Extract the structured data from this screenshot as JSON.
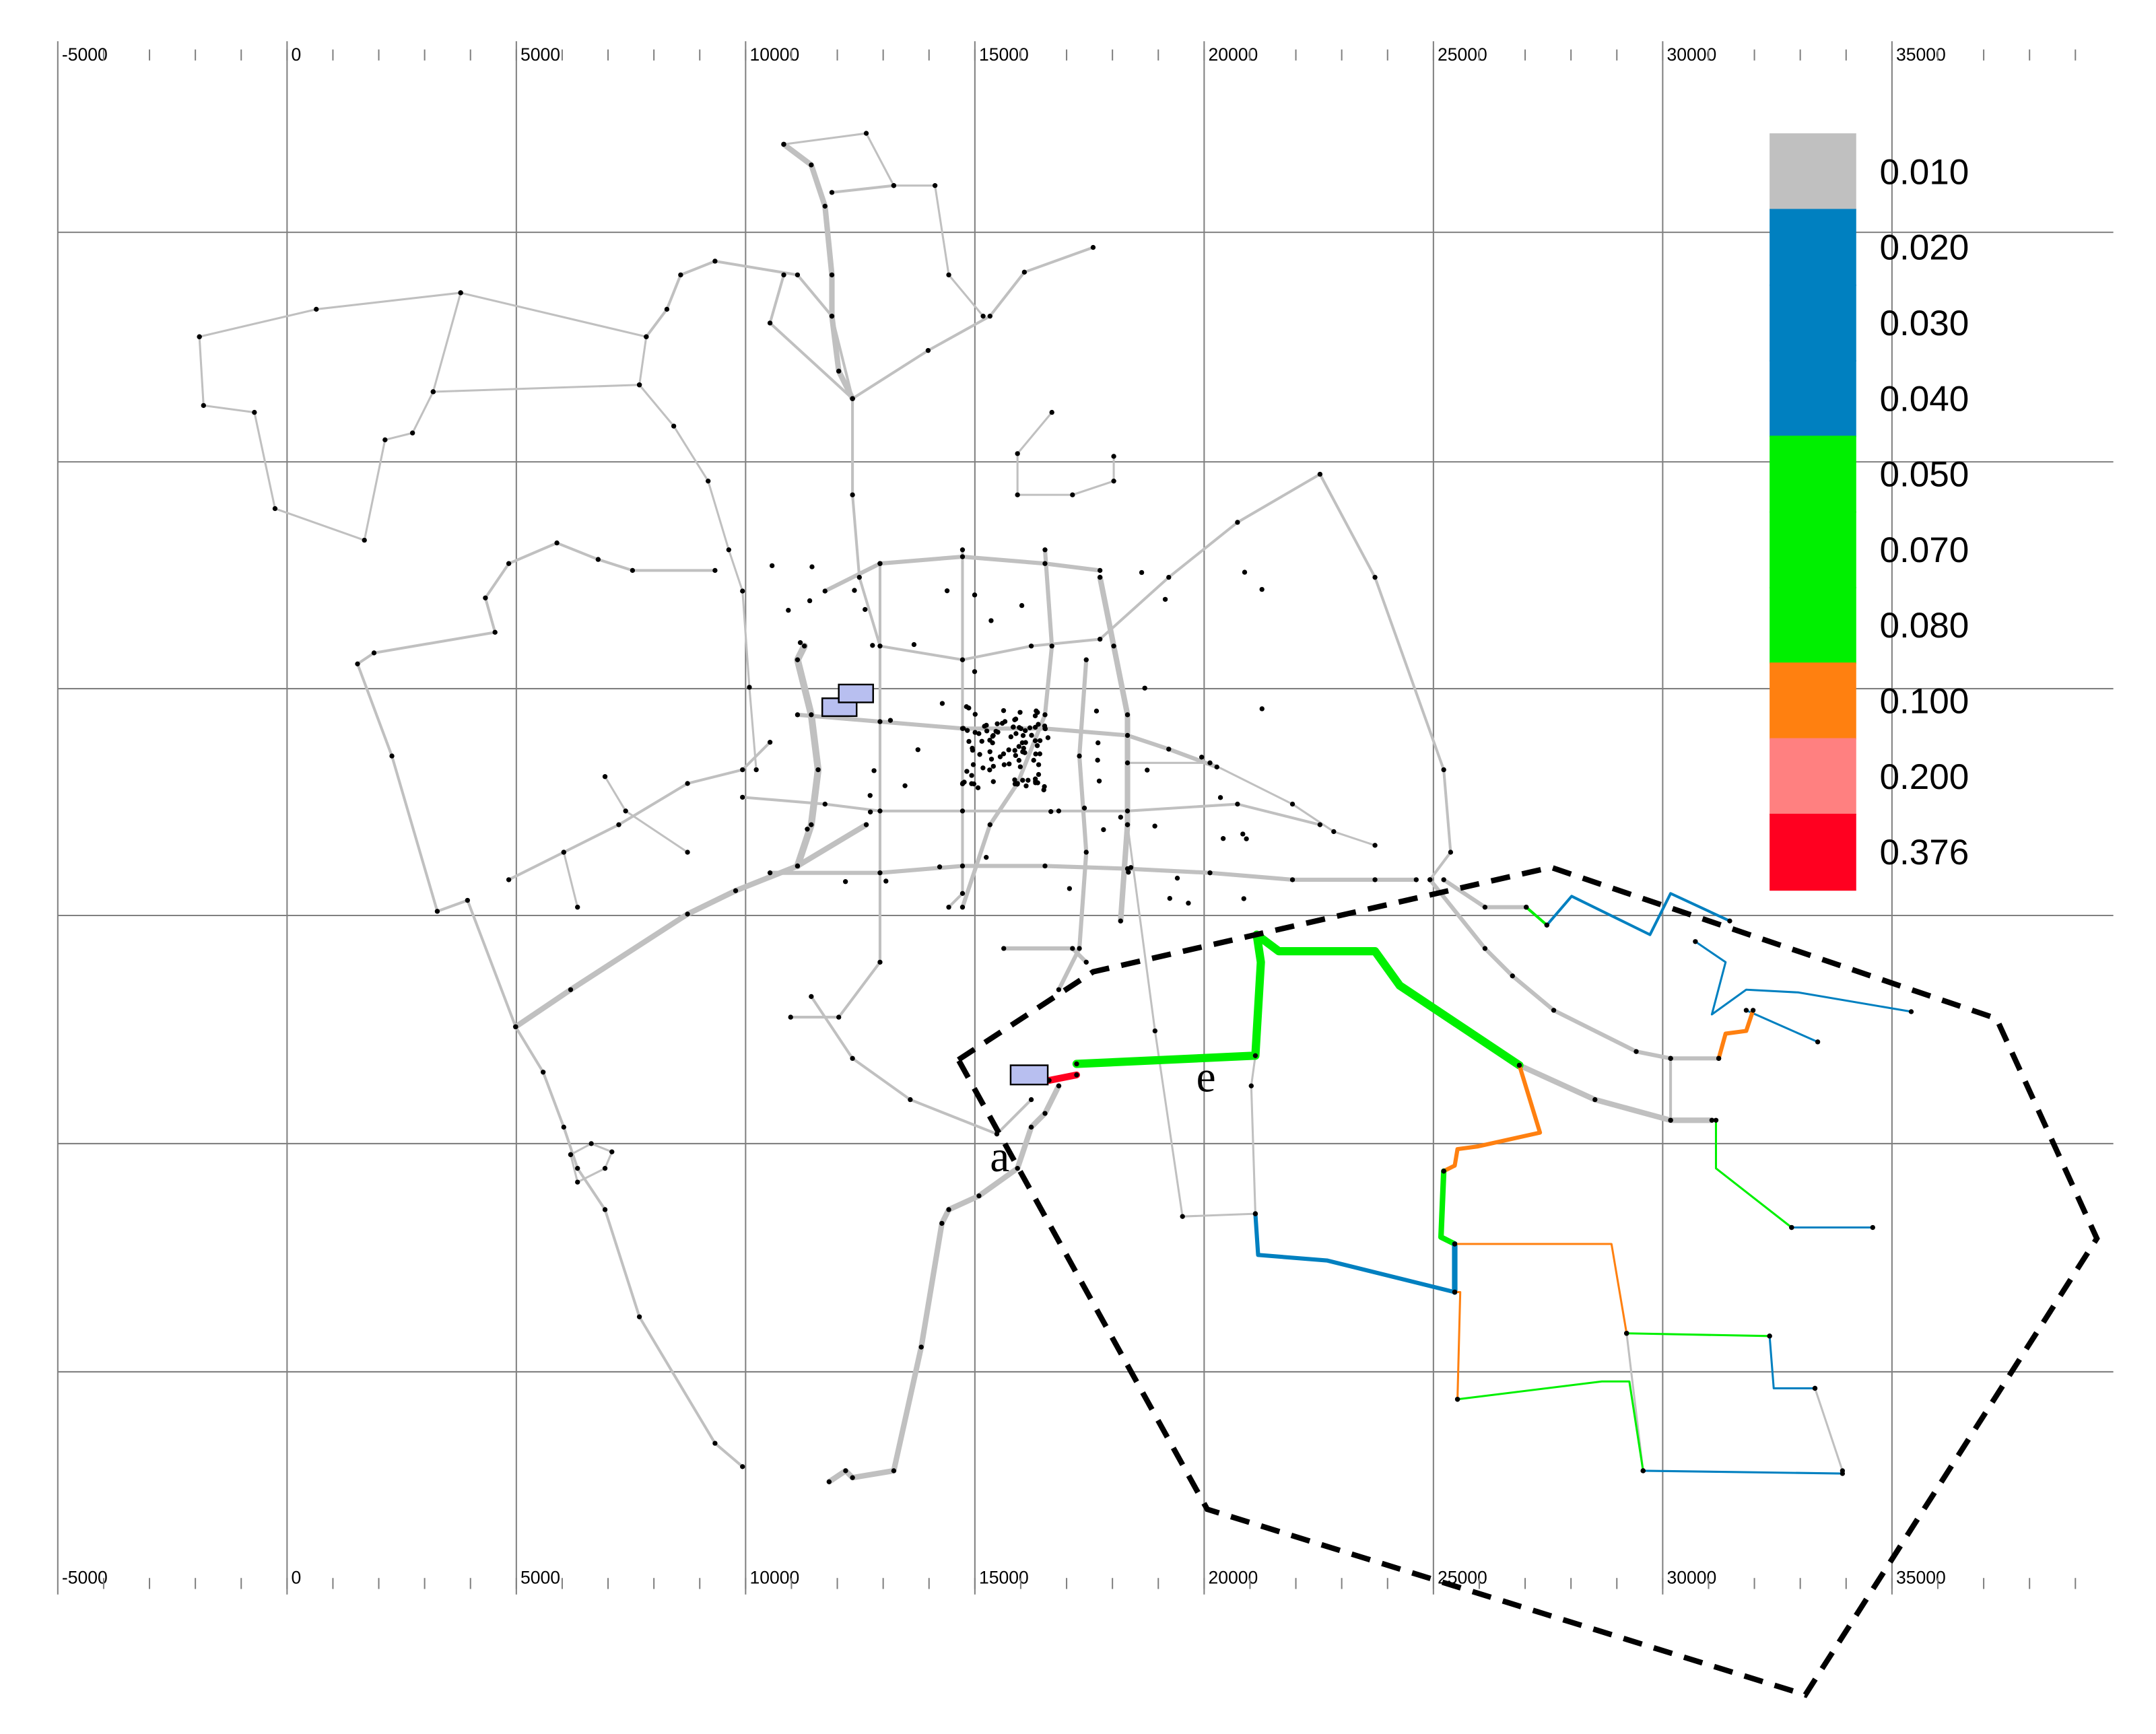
{
  "ruler": {
    "labels": [
      "-5000",
      "0",
      "5000",
      "10000",
      "15000",
      "20000",
      "25000",
      "30000",
      "35000"
    ]
  },
  "legend": {
    "items": [
      {
        "label": "0.010",
        "color": "#c0c0c0"
      },
      {
        "label": "0.020",
        "color": "#0080c0"
      },
      {
        "label": "0.030",
        "color": "#0080c0"
      },
      {
        "label": "0.040",
        "color": "#0080c0"
      },
      {
        "label": "0.050",
        "color": "#00f000"
      },
      {
        "label": "0.070",
        "color": "#00f000"
      },
      {
        "label": "0.080",
        "color": "#00f000"
      },
      {
        "label": "0.100",
        "color": "#ff8010"
      },
      {
        "label": "0.200",
        "color": "#ff8080"
      },
      {
        "label": "0.376",
        "color": "#ff0020"
      }
    ]
  },
  "annotations": {
    "a": "a",
    "e": "e"
  }
}
